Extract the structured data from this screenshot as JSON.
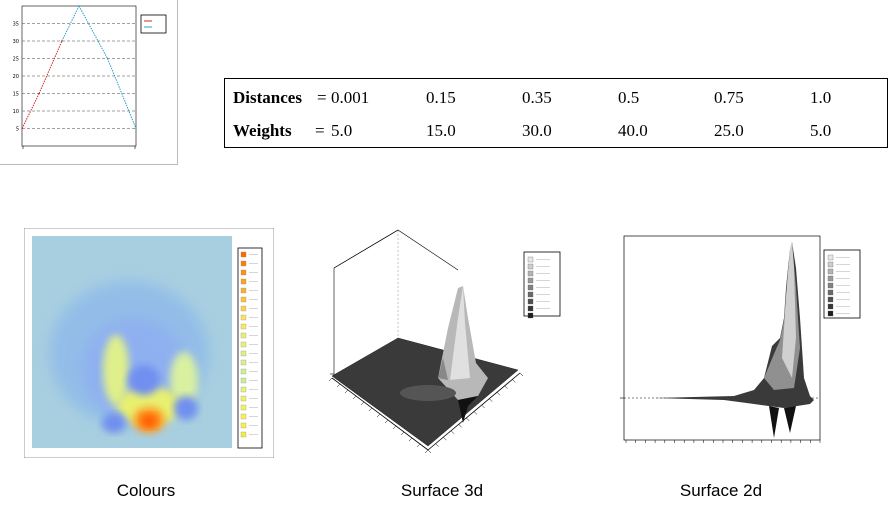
{
  "table": {
    "rows": [
      {
        "label": "Distances",
        "sep": "=",
        "values": [
          "0.001",
          "0.15",
          "0.35",
          "0.5",
          "0.75",
          "1.0"
        ]
      },
      {
        "label": "Weights",
        "sep": "=",
        "values": [
          "5.0",
          "15.0",
          "30.0",
          "40.0",
          "25.0",
          "5.0"
        ]
      }
    ]
  },
  "captions": {
    "colours": "Colours",
    "surface3d": "Surface 3d",
    "surface2d": "Surface 2d"
  },
  "chart_data": [
    {
      "type": "line",
      "title": "",
      "xlabel": "",
      "ylabel": "",
      "y_ticks": [
        "5",
        "10",
        "15",
        "20",
        "25",
        "30",
        "35"
      ],
      "ylim": [
        0,
        40
      ],
      "xlim": [
        0,
        1
      ],
      "grid": "dashed-horizontal",
      "legend": "top-right",
      "series": [
        {
          "x": [
            0.001,
            0.15,
            0.35,
            0.5,
            0.75,
            1.0
          ],
          "values": [
            5.0,
            15.0,
            30.0,
            40.0,
            25.0,
            5.0
          ]
        }
      ],
      "colors": {
        "low_segment": "#cc2a2a",
        "high_segment": "#2aa0c8"
      }
    },
    {
      "type": "heatmap",
      "legend": "right",
      "palette": [
        "#a8cfe0",
        "#6f9fe8",
        "#e8f070",
        "#ff9020",
        "#ff5000"
      ]
    },
    {
      "type": "area",
      "legend": "top-right",
      "palette": [
        "#2a2a2a",
        "#9a9a9a",
        "#e8e8e8"
      ]
    },
    {
      "type": "area",
      "legend": "top-right",
      "palette": [
        "#2a2a2a",
        "#9a9a9a",
        "#e8e8e8"
      ]
    }
  ]
}
